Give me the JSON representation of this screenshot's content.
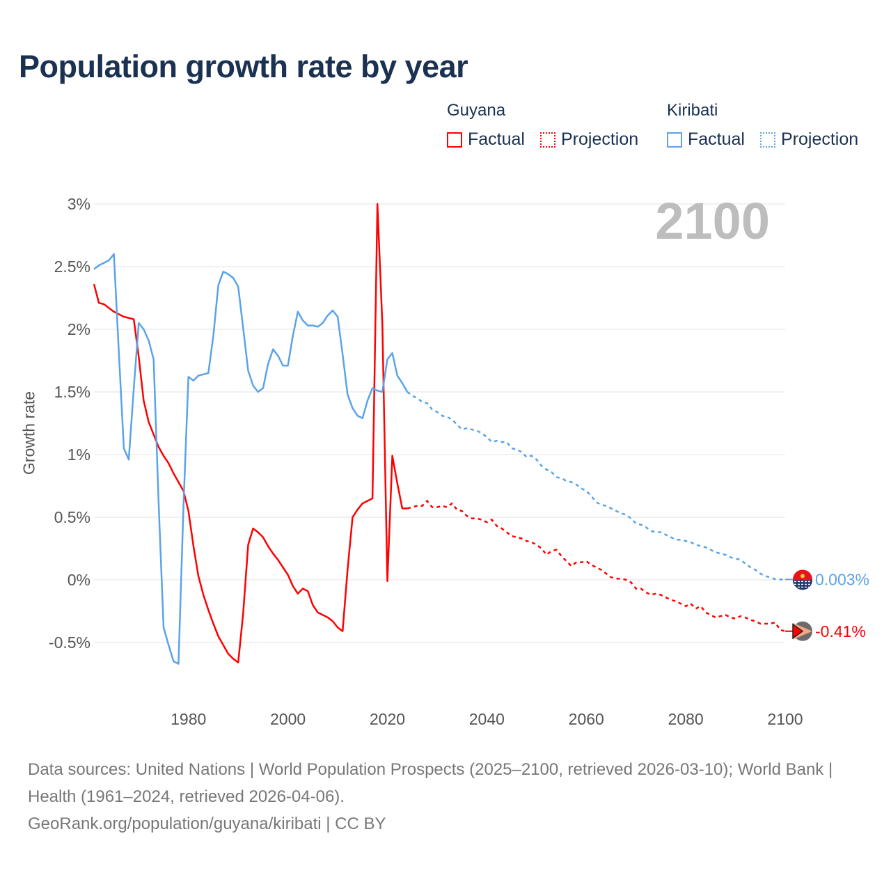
{
  "title": "Population growth rate by year",
  "legend": {
    "countries": [
      {
        "name": "Guyana",
        "color": "#ff0000",
        "factual": "Factual",
        "projection": "Projection"
      },
      {
        "name": "Kiribati",
        "color": "#5ba3e8",
        "factual": "Factual",
        "projection": "Projection"
      }
    ]
  },
  "current_year_label": "2100",
  "footer": {
    "sources": "Data sources: United Nations | World Population Prospects (2025–2100, retrieved 2026-03-10); World Bank | Health (1961–2024, retrieved 2026-04-06).",
    "credit": "GeoRank.org/population/guyana/kiribati | CC BY"
  },
  "chart_data": {
    "type": "line",
    "title": "Population growth rate by year",
    "xlabel": "",
    "ylabel": "Growth rate",
    "xlim": [
      1961,
      2100
    ],
    "ylim": [
      -0.85,
      3.0
    ],
    "x_ticks": [
      1980,
      2000,
      2020,
      2040,
      2060,
      2080,
      2100
    ],
    "y_ticks": [
      {
        "value": 3,
        "label": "3%"
      },
      {
        "value": 2.5,
        "label": "2.5%"
      },
      {
        "value": 2,
        "label": "2%"
      },
      {
        "value": 1.5,
        "label": "1.5%"
      },
      {
        "value": 1,
        "label": "1%"
      },
      {
        "value": 0.5,
        "label": "0.5%"
      },
      {
        "value": 0,
        "label": "0%"
      },
      {
        "value": -0.5,
        "label": "-0.5%"
      }
    ],
    "grid": true,
    "legend_position": "top-right",
    "factual_years": [
      1961,
      2024
    ],
    "projection_years": [
      2024,
      2100
    ],
    "series": [
      {
        "name": "Guyana",
        "color": "#ff0000",
        "end_label": "-0.41%",
        "start_year": 1961,
        "values": [
          2.36,
          2.21,
          2.2,
          2.17,
          2.14,
          2.12,
          2.1,
          2.09,
          2.08,
          1.78,
          1.43,
          1.26,
          1.16,
          1.06,
          0.99,
          0.93,
          0.85,
          0.78,
          0.71,
          0.55,
          0.27,
          0.03,
          -0.12,
          -0.24,
          -0.35,
          -0.45,
          -0.52,
          -0.59,
          -0.63,
          -0.66,
          -0.27,
          0.28,
          0.41,
          0.38,
          0.34,
          0.27,
          0.21,
          0.16,
          0.1,
          0.04,
          -0.05,
          -0.11,
          -0.07,
          -0.09,
          -0.2,
          -0.26,
          -0.28,
          -0.3,
          -0.33,
          -0.38,
          -0.41,
          0.08,
          0.5,
          0.56,
          0.61,
          0.63,
          0.65,
          3.0,
          2.04,
          -0.01,
          0.99,
          0.77,
          0.57,
          0.57,
          0.58,
          0.59,
          0.59,
          0.63,
          0.58,
          0.58,
          0.59,
          0.58,
          0.61,
          0.56,
          0.55,
          0.51,
          0.49,
          0.49,
          0.48,
          0.46,
          0.48,
          0.43,
          0.41,
          0.38,
          0.35,
          0.34,
          0.33,
          0.31,
          0.3,
          0.28,
          0.25,
          0.2,
          0.23,
          0.24,
          0.19,
          0.15,
          0.11,
          0.14,
          0.14,
          0.15,
          0.12,
          0.1,
          0.08,
          0.05,
          0.02,
          0.01,
          0.01,
          0.0,
          -0.02,
          -0.07,
          -0.07,
          -0.1,
          -0.12,
          -0.11,
          -0.12,
          -0.14,
          -0.16,
          -0.17,
          -0.19,
          -0.21,
          -0.19,
          -0.23,
          -0.21,
          -0.26,
          -0.28,
          -0.3,
          -0.29,
          -0.28,
          -0.3,
          -0.31,
          -0.29,
          -0.3,
          -0.32,
          -0.33,
          -0.35,
          -0.35,
          -0.35,
          -0.34,
          -0.4,
          -0.41
        ]
      },
      {
        "name": "Kiribati",
        "color": "#5ba3e8",
        "end_label": "0.003%",
        "start_year": 1961,
        "values": [
          2.48,
          2.51,
          2.53,
          2.55,
          2.6,
          1.82,
          1.05,
          0.96,
          1.53,
          2.05,
          2.0,
          1.91,
          1.76,
          0.61,
          -0.38,
          -0.52,
          -0.65,
          -0.67,
          0.59,
          1.62,
          1.59,
          1.63,
          1.64,
          1.65,
          1.95,
          2.35,
          2.46,
          2.44,
          2.41,
          2.34,
          2.01,
          1.67,
          1.55,
          1.5,
          1.53,
          1.72,
          1.84,
          1.79,
          1.71,
          1.71,
          1.95,
          2.14,
          2.07,
          2.03,
          2.03,
          2.02,
          2.05,
          2.11,
          2.15,
          2.1,
          1.8,
          1.48,
          1.37,
          1.31,
          1.29,
          1.43,
          1.53,
          1.51,
          1.5,
          1.76,
          1.81,
          1.63,
          1.57,
          1.5,
          1.47,
          1.45,
          1.42,
          1.41,
          1.36,
          1.34,
          1.31,
          1.3,
          1.28,
          1.24,
          1.2,
          1.21,
          1.2,
          1.19,
          1.17,
          1.14,
          1.1,
          1.11,
          1.1,
          1.1,
          1.05,
          1.04,
          1.02,
          0.98,
          0.99,
          0.96,
          0.91,
          0.88,
          0.86,
          0.82,
          0.81,
          0.79,
          0.78,
          0.76,
          0.73,
          0.71,
          0.67,
          0.62,
          0.6,
          0.59,
          0.57,
          0.55,
          0.53,
          0.52,
          0.49,
          0.45,
          0.44,
          0.42,
          0.39,
          0.38,
          0.38,
          0.36,
          0.34,
          0.32,
          0.32,
          0.31,
          0.3,
          0.28,
          0.27,
          0.26,
          0.24,
          0.22,
          0.21,
          0.2,
          0.18,
          0.17,
          0.16,
          0.13,
          0.1,
          0.08,
          0.05,
          0.03,
          0.02,
          0.005,
          0.003,
          0.003
        ]
      }
    ]
  }
}
